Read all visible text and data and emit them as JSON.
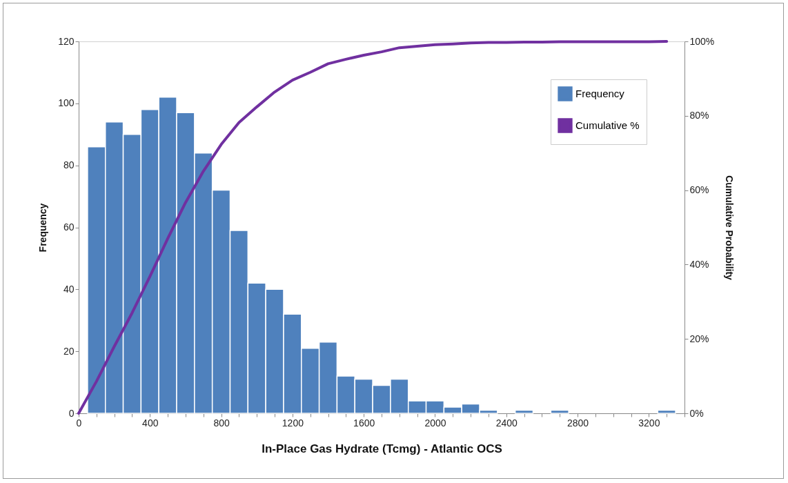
{
  "chart_data": {
    "type": "histogram",
    "xlabel": "In-Place Gas Hydrate (Tcmg) - Atlantic OCS",
    "ylabel": "Frequency",
    "y2label": "Cumulative Probability",
    "bins": [
      50,
      150,
      250,
      350,
      450,
      550,
      650,
      750,
      850,
      950,
      1050,
      1150,
      1250,
      1350,
      1450,
      1550,
      1650,
      1750,
      1850,
      1950,
      2050,
      2150,
      2250,
      2350,
      2450,
      2550,
      2650,
      2750,
      2850,
      2950,
      3050,
      3150,
      3250,
      3350
    ],
    "series": [
      {
        "name": "Frequency",
        "color": "#4f81bd",
        "values": [
          86,
          94,
          90,
          98,
          102,
          97,
          84,
          72,
          59,
          42,
          40,
          32,
          21,
          23,
          12,
          11,
          9,
          11,
          4,
          4,
          2,
          3,
          1,
          0,
          1,
          0,
          1,
          0,
          0,
          0,
          0,
          0,
          1
        ]
      },
      {
        "name": "Cumulative %",
        "type": "line",
        "axis": "y2",
        "color": "#7030a0",
        "x": [
          0,
          100,
          200,
          300,
          400,
          500,
          600,
          700,
          800,
          900,
          1000,
          1100,
          1200,
          1300,
          1400,
          1500,
          1600,
          1700,
          1800,
          1900,
          2000,
          2100,
          2200,
          2300,
          2400,
          2500,
          2600,
          2700,
          2800,
          2900,
          3000,
          3100,
          3200,
          3300
        ],
        "values": [
          0,
          8.6,
          18,
          27,
          36.8,
          47,
          56.7,
          65.1,
          72.3,
          78.2,
          82.4,
          86.4,
          89.6,
          91.7,
          94,
          95.2,
          96.3,
          97.2,
          98.3,
          98.7,
          99.1,
          99.3,
          99.6,
          99.7,
          99.7,
          99.8,
          99.8,
          99.9,
          99.9,
          99.9,
          99.9,
          99.9,
          99.9,
          100
        ]
      }
    ],
    "xlim": [
      0,
      3400
    ],
    "xticks": [
      0,
      {
        "value": 100,
        "label": null
      },
      {
        "value": 200,
        "label": null
      },
      {
        "value": 300,
        "label": null
      },
      400,
      {
        "value": 500,
        "label": null
      },
      {
        "value": 600,
        "label": null
      },
      {
        "value": 700,
        "label": null
      },
      800,
      {
        "value": 900,
        "label": null
      },
      {
        "value": 1000,
        "label": null
      },
      {
        "value": 1100,
        "label": null
      },
      1200,
      {
        "value": 1300,
        "label": null
      },
      {
        "value": 1400,
        "label": null
      },
      {
        "value": 1500,
        "label": null
      },
      1600,
      {
        "value": 1700,
        "label": null
      },
      {
        "value": 1800,
        "label": null
      },
      {
        "value": 1900,
        "label": null
      },
      2000,
      {
        "value": 2100,
        "label": null
      },
      {
        "value": 2200,
        "label": null
      },
      {
        "value": 2300,
        "label": null
      },
      2400,
      {
        "value": 2500,
        "label": null
      },
      {
        "value": 2600,
        "label": null
      },
      {
        "value": 2700,
        "label": null
      },
      2800,
      {
        "value": 2900,
        "label": null
      },
      {
        "value": 3000,
        "label": null
      },
      {
        "value": 3100,
        "label": null
      },
      3200,
      {
        "value": 3300,
        "label": null
      },
      {
        "value": 3400,
        "label": null
      }
    ],
    "ylim": [
      0,
      120
    ],
    "yticks": [
      0,
      20,
      40,
      60,
      80,
      100,
      120
    ],
    "y2lim": [
      0,
      100
    ],
    "y2ticks": [
      {
        "value": 0,
        "label": "0%"
      },
      {
        "value": 20,
        "label": "20%"
      },
      {
        "value": 40,
        "label": "40%"
      },
      {
        "value": 60,
        "label": "60%"
      },
      {
        "value": 80,
        "label": "80%"
      },
      {
        "value": 100,
        "label": "100%"
      }
    ],
    "grid": false,
    "legend": "top right"
  }
}
